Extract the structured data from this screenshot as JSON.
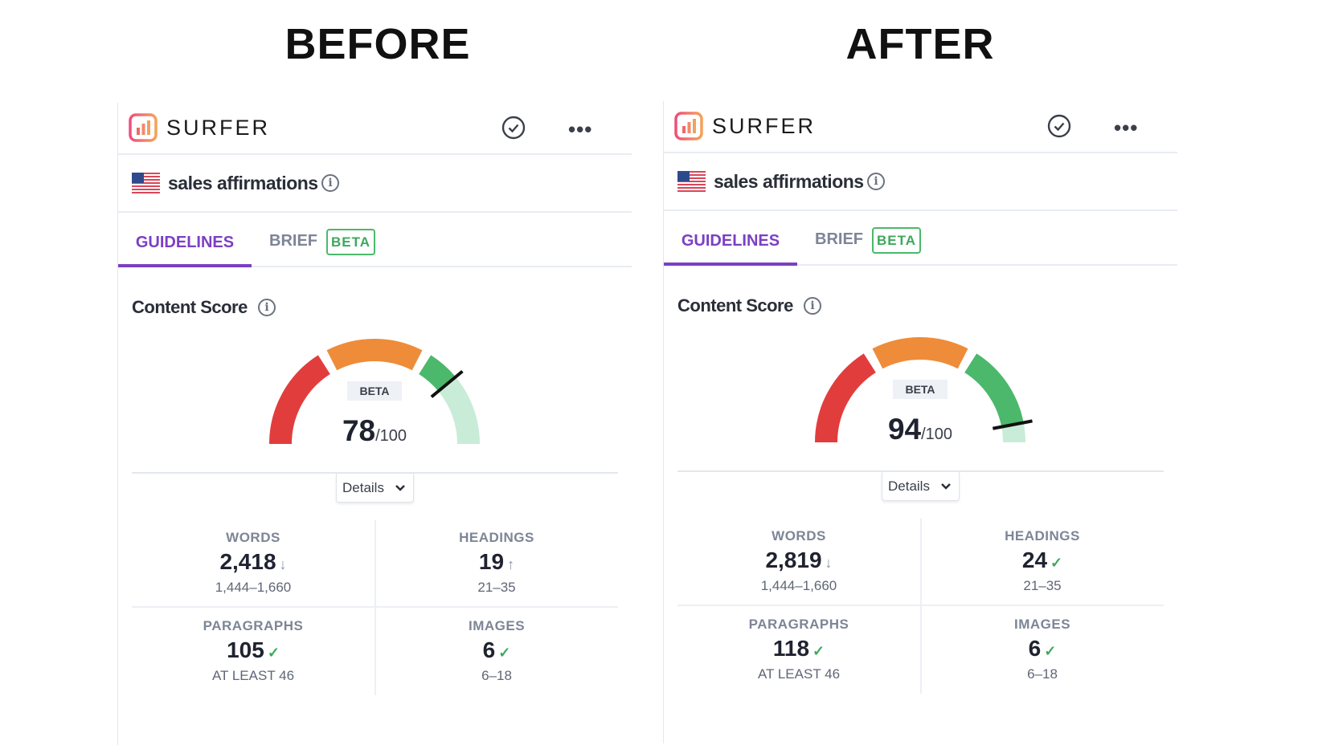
{
  "titles": {
    "before": "BEFORE",
    "after": "AFTER"
  },
  "colors": {
    "red": "#e23d3d",
    "orange": "#ee8c3a",
    "green": "#4cb86b",
    "light_green": "#c9ecd8",
    "purple": "#7b3fc4"
  },
  "panels": [
    {
      "brand": "SURFER",
      "keyword": "sales affirmations",
      "tabs": {
        "guidelines": "GUIDELINES",
        "brief": "BRIEF",
        "beta": "BETA"
      },
      "content_score_label": "Content Score",
      "gauge_badge": "BETA",
      "score": 78,
      "score_display": "78",
      "score_max": "/100",
      "details_label": "Details",
      "stats": [
        {
          "label": "WORDS",
          "value": "2,418",
          "indicator": "↓",
          "indicator_type": "down",
          "range": "1,444–1,660"
        },
        {
          "label": "HEADINGS",
          "value": "19",
          "indicator": "↑",
          "indicator_type": "up",
          "range": "21–35"
        },
        {
          "label": "PARAGRAPHS",
          "value": "105",
          "indicator": "✓",
          "indicator_type": "ok",
          "range": "AT LEAST 46"
        },
        {
          "label": "IMAGES",
          "value": "6",
          "indicator": "✓",
          "indicator_type": "ok",
          "range": "6–18"
        }
      ]
    },
    {
      "brand": "SURFER",
      "keyword": "sales affirmations",
      "tabs": {
        "guidelines": "GUIDELINES",
        "brief": "BRIEF",
        "beta": "BETA"
      },
      "content_score_label": "Content Score",
      "gauge_badge": "BETA",
      "score": 94,
      "score_display": "94",
      "score_max": "/100",
      "details_label": "Details",
      "stats": [
        {
          "label": "WORDS",
          "value": "2,819",
          "indicator": "↓",
          "indicator_type": "down",
          "range": "1,444–1,660"
        },
        {
          "label": "HEADINGS",
          "value": "24",
          "indicator": "✓",
          "indicator_type": "ok",
          "range": "21–35"
        },
        {
          "label": "PARAGRAPHS",
          "value": "118",
          "indicator": "✓",
          "indicator_type": "ok",
          "range": "AT LEAST 46"
        },
        {
          "label": "IMAGES",
          "value": "6",
          "indicator": "✓",
          "indicator_type": "ok",
          "range": "6–18"
        }
      ]
    }
  ]
}
